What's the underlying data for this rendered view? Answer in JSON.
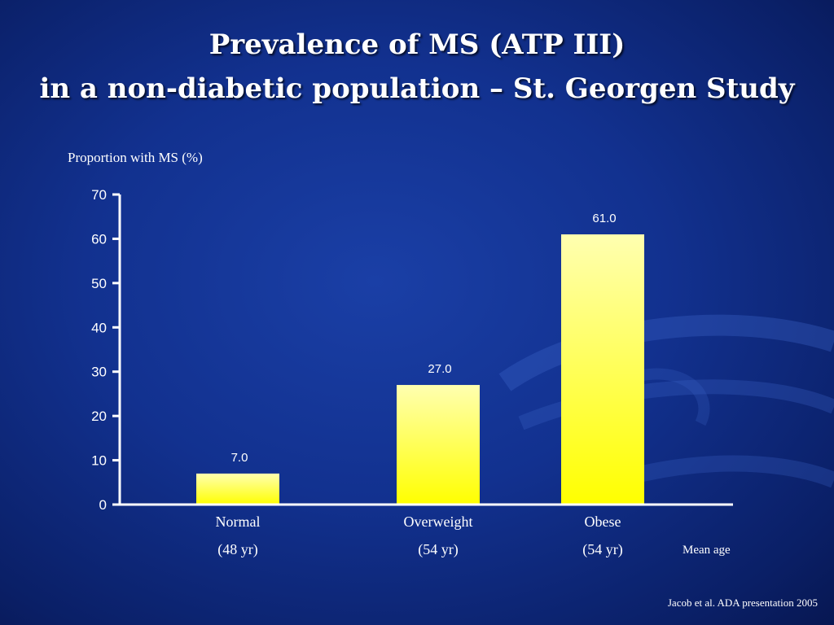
{
  "slide": {
    "title_line1": "Prevalence of  MS (ATP III)",
    "title_line2": "in a non-diabetic population –  St. Georgen Study",
    "source": "Jacob et al. ADA presentation 2005",
    "mean_age_label": "Mean age"
  },
  "colors": {
    "background": "#12318f",
    "bar_top": "#ffffb0",
    "bar_bottom": "#ffff00",
    "axis": "#ffffff"
  },
  "chart_data": {
    "type": "bar",
    "ylabel": "Proportion with MS (%)",
    "xlabel": "",
    "ylim": [
      0,
      70
    ],
    "yticks": [
      0,
      10,
      20,
      30,
      40,
      50,
      60,
      70
    ],
    "categories": [
      "Normal",
      "Overweight",
      "Obese"
    ],
    "category_sublabels": [
      "(48 yr)",
      "(54 yr)",
      "(54 yr)"
    ],
    "values": [
      7.0,
      27.0,
      61.0
    ],
    "value_labels": [
      "7.0",
      "27.0",
      "61.0"
    ],
    "grid": false,
    "legend": "none"
  }
}
